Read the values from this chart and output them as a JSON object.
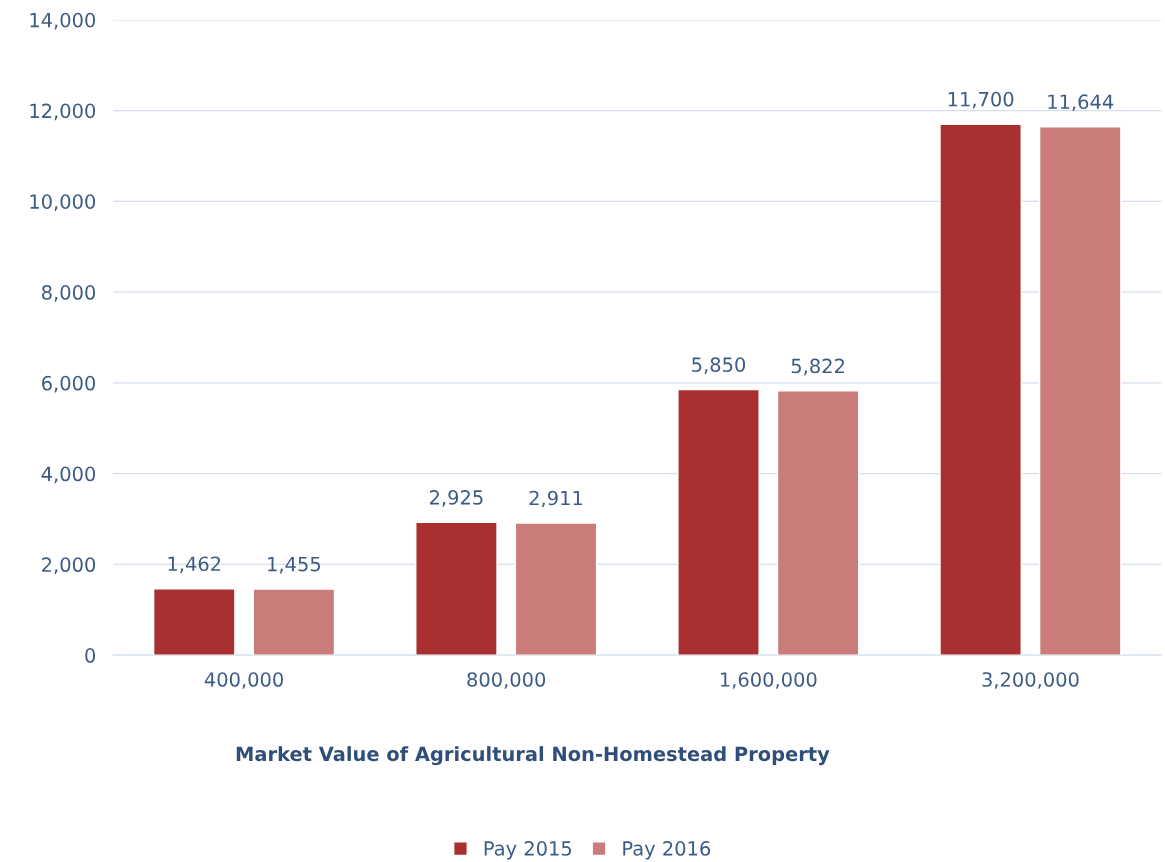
{
  "chart_data": {
    "type": "bar",
    "categories": [
      "400,000",
      "800,000",
      "1,600,000",
      "3,200,000"
    ],
    "xlabel": "Market Value of Agricultural Non-Homestead Property",
    "series": [
      {
        "name": "Pay 2015",
        "color": "#a83030",
        "values": [
          1462,
          2925,
          5850,
          11700
        ],
        "value_labels": [
          "1,462",
          "2,925",
          "5,850",
          "11,700"
        ]
      },
      {
        "name": "Pay 2016",
        "color": "#c97c79",
        "values": [
          1455,
          2911,
          5822,
          11644
        ],
        "value_labels": [
          "1,455",
          "2,911",
          "5,822",
          "11,644"
        ]
      }
    ],
    "ylim": [
      0,
      14000
    ],
    "yticks": [
      {
        "value": 0,
        "label": "0"
      },
      {
        "value": 2000,
        "label": "2,000"
      },
      {
        "value": 4000,
        "label": "4,000"
      },
      {
        "value": 6000,
        "label": "6,000"
      },
      {
        "value": 8000,
        "label": "8,000"
      },
      {
        "value": 10000,
        "label": "10,000"
      },
      {
        "value": 12000,
        "label": "12,000"
      },
      {
        "value": 14000,
        "label": "14,000"
      }
    ],
    "grid": "y",
    "legend": "bottom"
  }
}
